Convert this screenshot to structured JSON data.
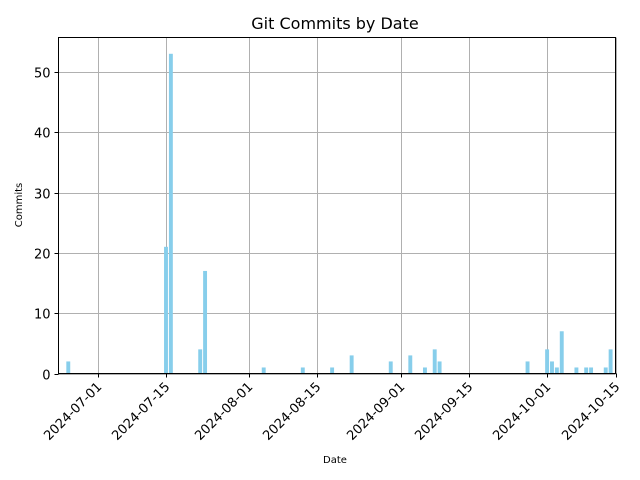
{
  "chart_data": {
    "type": "bar",
    "title": "Git Commits by Date",
    "xlabel": "Date",
    "ylabel": "Commits",
    "x_range": [
      "2024-06-23",
      "2024-10-15"
    ],
    "ylim": [
      0,
      55.7
    ],
    "x_ticks": [
      "2024-07-01",
      "2024-07-15",
      "2024-08-01",
      "2024-08-15",
      "2024-09-01",
      "2024-09-15",
      "2024-10-01",
      "2024-10-15"
    ],
    "y_ticks": [
      0,
      10,
      20,
      30,
      40,
      50
    ],
    "grid": true,
    "bar_color": "#87ceeb",
    "data": [
      {
        "date": "2024-06-25",
        "commits": 2
      },
      {
        "date": "2024-07-15",
        "commits": 21
      },
      {
        "date": "2024-07-16",
        "commits": 53
      },
      {
        "date": "2024-07-22",
        "commits": 4
      },
      {
        "date": "2024-07-23",
        "commits": 17
      },
      {
        "date": "2024-08-04",
        "commits": 1
      },
      {
        "date": "2024-08-12",
        "commits": 1
      },
      {
        "date": "2024-08-18",
        "commits": 1
      },
      {
        "date": "2024-08-22",
        "commits": 3
      },
      {
        "date": "2024-08-30",
        "commits": 2
      },
      {
        "date": "2024-09-03",
        "commits": 3
      },
      {
        "date": "2024-09-06",
        "commits": 1
      },
      {
        "date": "2024-09-08",
        "commits": 4
      },
      {
        "date": "2024-09-09",
        "commits": 2
      },
      {
        "date": "2024-09-27",
        "commits": 2
      },
      {
        "date": "2024-10-01",
        "commits": 4
      },
      {
        "date": "2024-10-02",
        "commits": 2
      },
      {
        "date": "2024-10-03",
        "commits": 1
      },
      {
        "date": "2024-10-04",
        "commits": 7
      },
      {
        "date": "2024-10-07",
        "commits": 1
      },
      {
        "date": "2024-10-09",
        "commits": 1
      },
      {
        "date": "2024-10-10",
        "commits": 1
      },
      {
        "date": "2024-10-13",
        "commits": 1
      },
      {
        "date": "2024-10-14",
        "commits": 4
      }
    ]
  }
}
